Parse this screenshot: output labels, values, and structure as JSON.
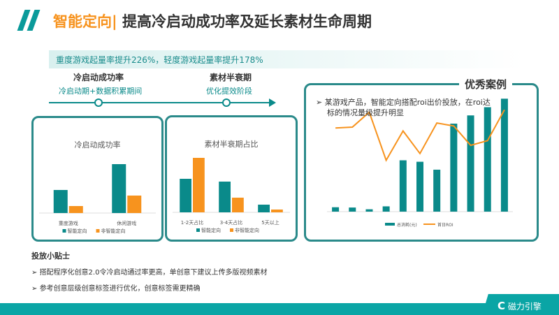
{
  "header": {
    "title_accent": "智能定向|",
    "title_main": " 提高冷启动成功率及延长素材生命周期"
  },
  "banner": "重度游戏起量率提升226%，轻度游戏起量率提升178%",
  "timeline": {
    "stage1_title": "冷启动成功率",
    "stage1_sub": "冷启动期+数据积累期间",
    "stage2_title": "素材半衰期",
    "stage2_sub": "优化提效阶段"
  },
  "colors": {
    "teal": "#0a8a8a",
    "orange": "#f7931e"
  },
  "chart_data": [
    {
      "type": "bar",
      "title": "冷启动成功率",
      "categories": [
        "重度游戏",
        "休闲游戏"
      ],
      "series": [
        {
          "name": "智能定向",
          "values": [
            33,
            70
          ]
        },
        {
          "name": "非智能定向",
          "values": [
            10,
            25
          ]
        }
      ],
      "legend": "bottom"
    },
    {
      "type": "bar",
      "title": "素材半衰期占比",
      "categories": [
        "1-2天占比",
        "3-4天占比",
        "5天以上"
      ],
      "series": [
        {
          "name": "智能定向",
          "values": [
            48,
            44,
            11
          ]
        },
        {
          "name": "非智能定向",
          "values": [
            78,
            21,
            4
          ]
        }
      ],
      "legend": "bottom"
    },
    {
      "type": "bar+line",
      "series": [
        {
          "name": "总消耗(元)",
          "type": "bar",
          "values": [
            15,
            14,
            8,
            18,
            175,
            170,
            143,
            300,
            328,
            356,
            385
          ]
        },
        {
          "name": "首日ROI",
          "type": "line",
          "values": [
            285,
            288,
            339,
            175,
            275,
            198,
            302,
            292,
            226,
            242,
            347
          ]
        }
      ],
      "legend": "bottom"
    }
  ],
  "case": {
    "heading": "优秀案例",
    "text1": "某游戏产品，智能定向搭配roi出价投放，在roi达",
    "text2": "标的情况量级提升明显"
  },
  "tips": {
    "heading": "投放小贴士",
    "items": [
      "搭配程序化创意2.0令冷启动通过率更高，单创意下建议上传多版视频素材",
      "参考创意层级创意标签进行优化，创意标签需更精确"
    ]
  },
  "brand": "磁力引擎"
}
